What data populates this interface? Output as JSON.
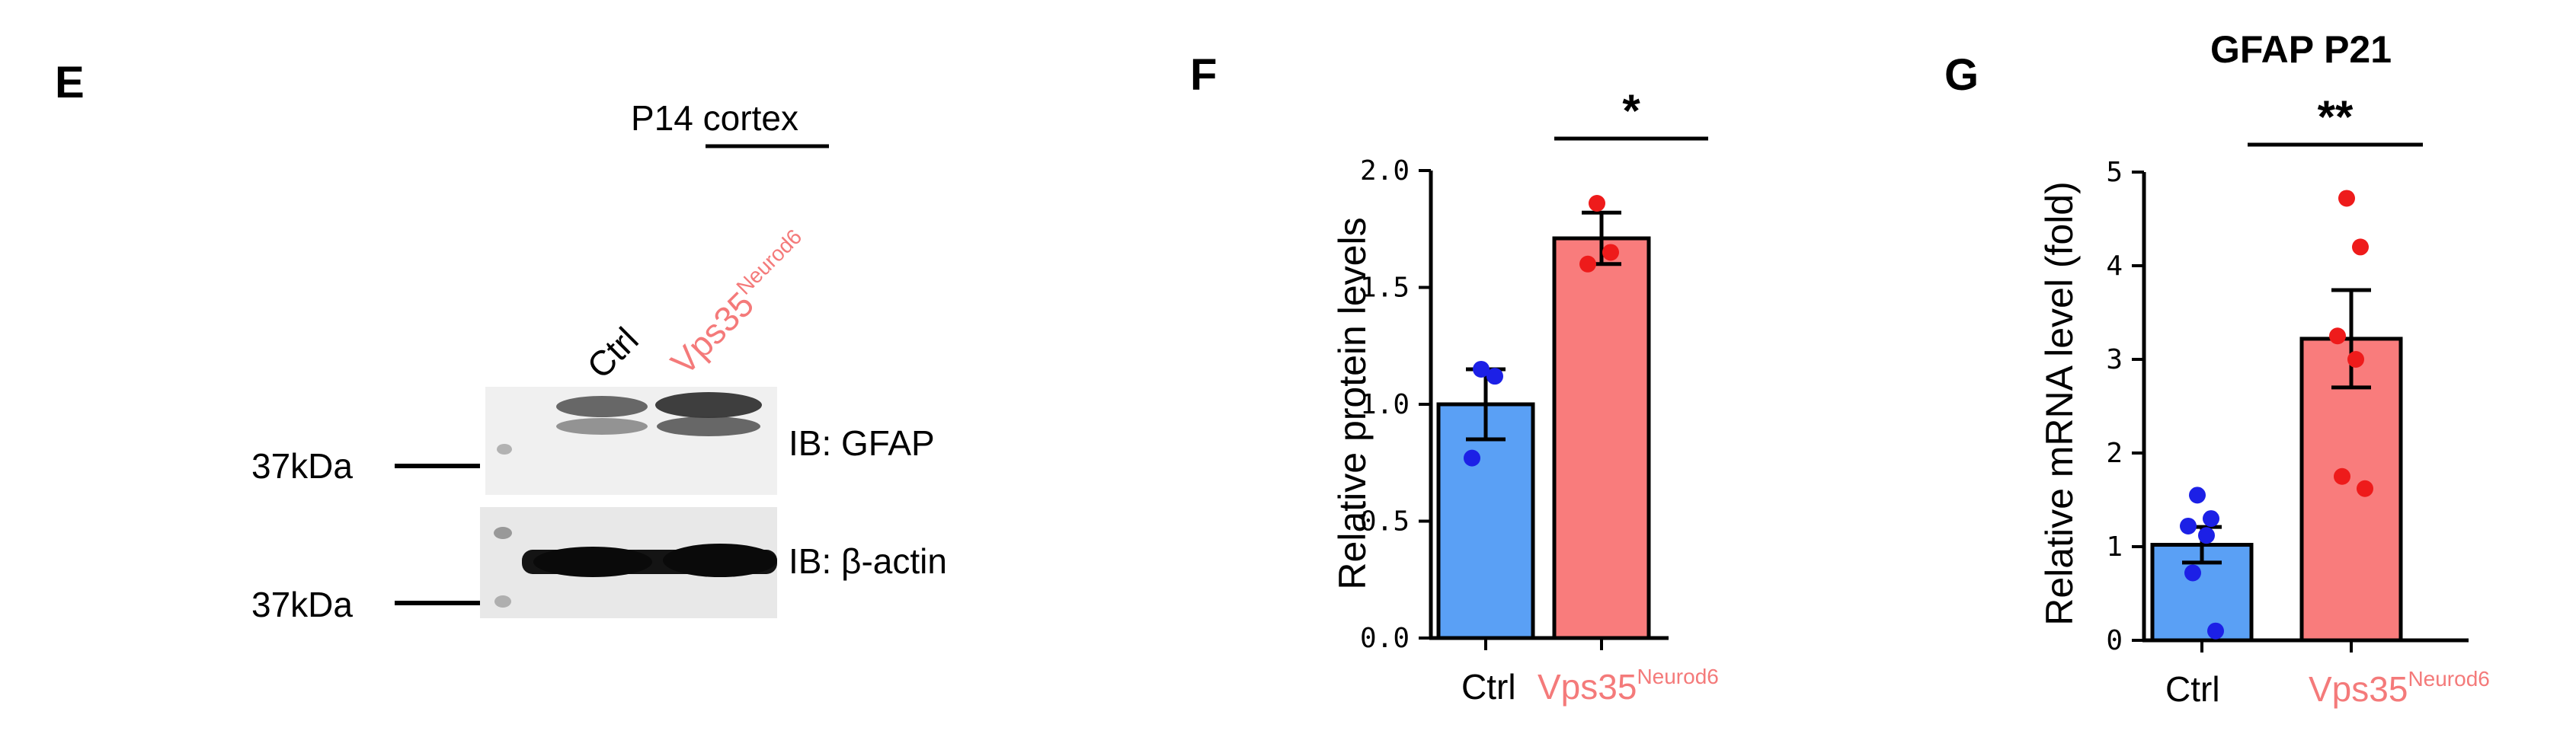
{
  "panel_e": {
    "letter": "E",
    "region": "P14 cortex",
    "lane_labels": [
      "Ctrl",
      "Vps35"
    ],
    "lane_label_sup": "Neurod6",
    "mw_markers": [
      "37kDa",
      "37kDa"
    ],
    "blot_labels": [
      "IB: GFAP",
      "IB: β-actin"
    ]
  },
  "colors": {
    "ctrl_bar": "#5aa0f5",
    "ko_bar": "#f97c7c",
    "ctrl_dot": "#1c20e6",
    "ko_dot": "#ee1b1b",
    "ko_text": "#f47a7a"
  },
  "chart_data": [
    {
      "panel": "F",
      "type": "bar",
      "title": "",
      "categories": [
        "Ctrl",
        "Vps35"
      ],
      "category_sup": [
        "",
        "Neurod6"
      ],
      "values": [
        1.0,
        1.71
      ],
      "sem": [
        0.15,
        0.11
      ],
      "points": [
        [
          1.15,
          1.12,
          0.77
        ],
        [
          1.86,
          1.65,
          1.6
        ]
      ],
      "ylabel": "Relative protein levels",
      "xlabel": "",
      "ylim": [
        0,
        2.0
      ],
      "yticks": [
        "0.0",
        "0.5",
        "1.0",
        "1.5",
        "2.0"
      ],
      "ytick_values": [
        0,
        0.5,
        1.0,
        1.5,
        2.0
      ],
      "significance": "*"
    },
    {
      "panel": "G",
      "type": "bar",
      "title": "GFAP P21",
      "categories": [
        "Ctrl",
        "Vps35"
      ],
      "category_sup": [
        "",
        "Neurod6"
      ],
      "values": [
        1.02,
        3.22
      ],
      "sem": [
        0.19,
        0.52
      ],
      "points": [
        [
          1.55,
          1.3,
          1.22,
          1.12,
          0.72,
          0.1
        ],
        [
          4.72,
          4.2,
          3.25,
          3.0,
          1.75,
          1.62
        ]
      ],
      "ylabel": "Relative mRNA level (fold)",
      "xlabel": "",
      "ylim": [
        0,
        5
      ],
      "yticks": [
        "0",
        "1",
        "2",
        "3",
        "4",
        "5"
      ],
      "ytick_values": [
        0,
        1,
        2,
        3,
        4,
        5
      ],
      "significance": "**"
    }
  ]
}
